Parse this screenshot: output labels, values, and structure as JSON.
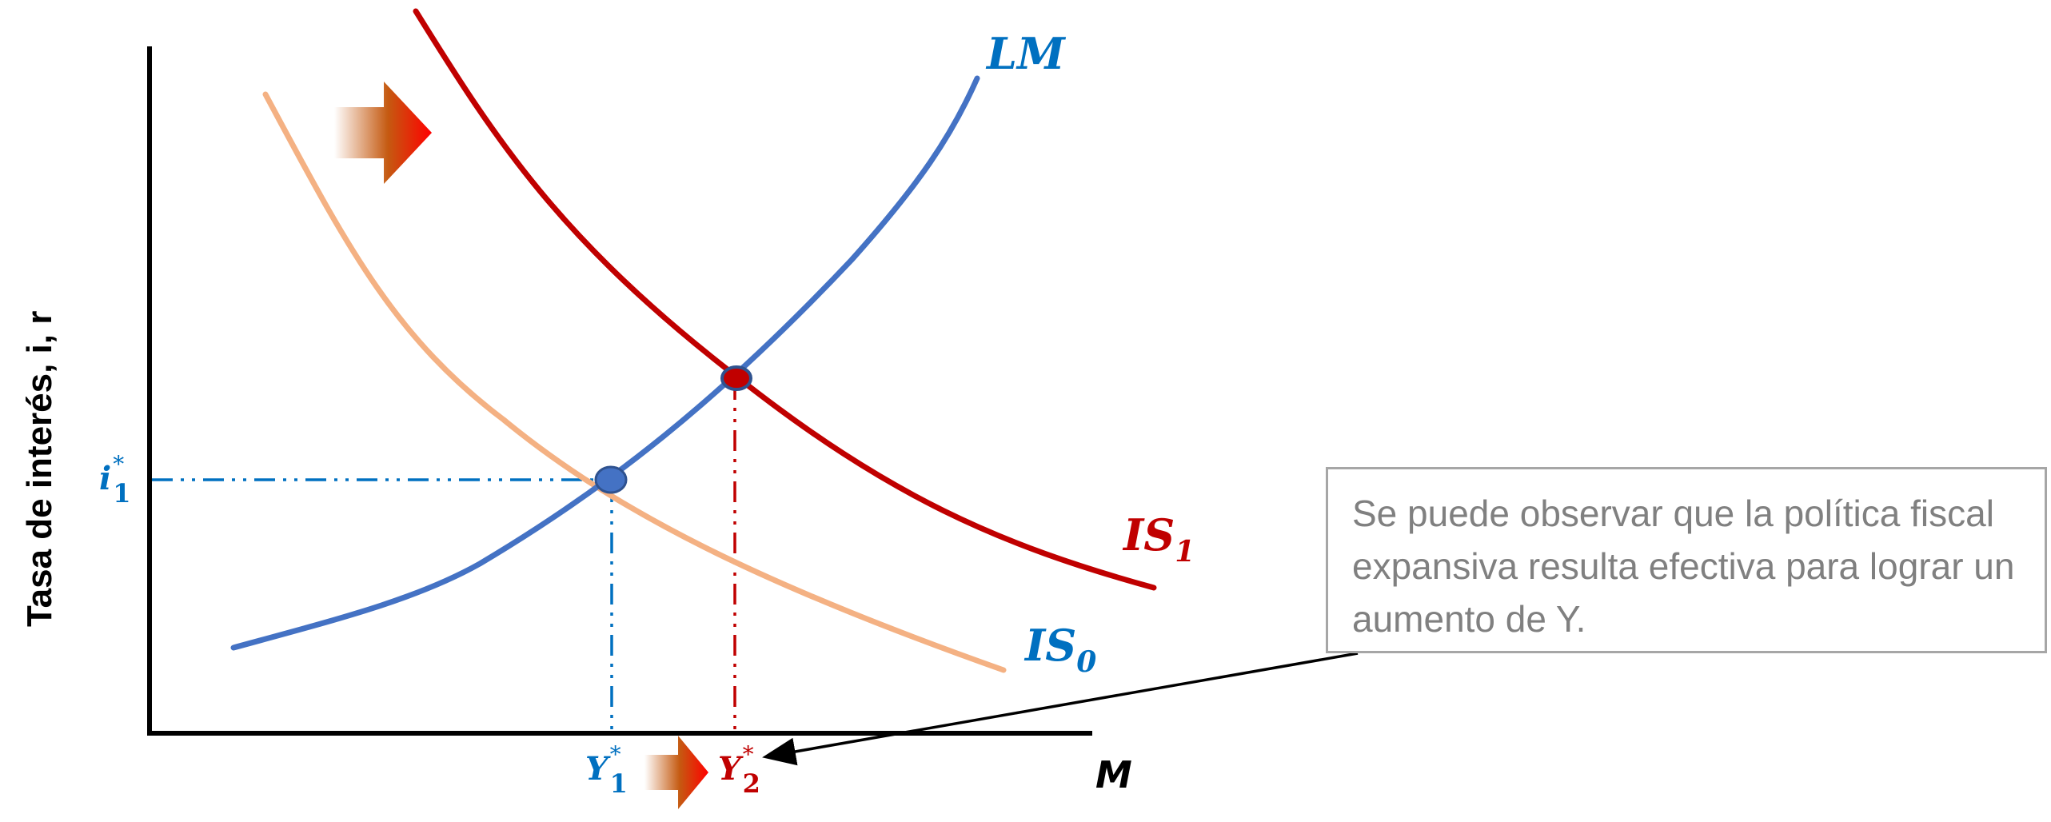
{
  "axes": {
    "y_title": "Tasa de interés, i, r",
    "x_label": "M"
  },
  "curves": {
    "lm": {
      "label": "LM",
      "color": "#4472c4"
    },
    "is0": {
      "label": "IS",
      "sub": "0",
      "color": "#f4b183"
    },
    "is1": {
      "label": "IS",
      "sub": "1",
      "color": "#c00000"
    }
  },
  "ticks": {
    "i1": {
      "label": "i",
      "sub": "1",
      "sup": "*",
      "color": "#0070c0"
    },
    "y1": {
      "label": "Y",
      "sub": "1",
      "sup": "*",
      "color": "#0070c0"
    },
    "y2": {
      "label": "Y",
      "sub": "2",
      "sup": "*",
      "color": "#c00000"
    }
  },
  "equilibria": {
    "e1": {
      "color": "#4472c4"
    },
    "e2": {
      "color": "#c00000"
    }
  },
  "note": {
    "text": "Se puede observar que la política fiscal expansiva resulta efectiva para lograr un aumento de Y."
  },
  "shift_arrows": {
    "color": "#ff0000",
    "direction": "right"
  }
}
